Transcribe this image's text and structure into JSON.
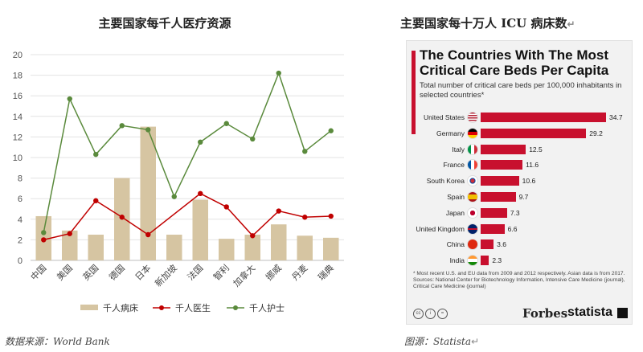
{
  "left_chart": {
    "title": "主要国家每千人医疗资源",
    "source": "数据来源：World Bank"
  },
  "right_chart": {
    "title": "主要国家每十万人 ICU 病床数",
    "source": "图源：Statista",
    "panel_title": "The Countries With The Most Critical Care Beds Per Capita",
    "panel_subtitle": "Total number of critical care beds per 100,000 inhabitants in selected countries*",
    "notes": "* Most recent U.S. and EU data from 2009 and 2012 respectively. Asian data is from 2017.",
    "sources": "Sources: National Center for Biotechnology Information, Intensive Care Medicine (journal), Critical Care Medicine (journal)",
    "brand_forbes": "Forbes",
    "brand_statista": "statista",
    "bar_color": "#c8102e"
  },
  "chart_data": [
    {
      "type": "bar",
      "title": "主要国家每千人医疗资源",
      "categories": [
        "中国",
        "美国",
        "英国",
        "德国",
        "日本",
        "新加坡",
        "法国",
        "智利",
        "加拿大",
        "挪威",
        "丹麦",
        "瑞典"
      ],
      "ylim": [
        0,
        20
      ],
      "yticks": [
        0,
        2,
        4,
        6,
        8,
        10,
        12,
        14,
        16,
        18,
        20
      ],
      "grid": true,
      "legend": "bottom",
      "series": [
        {
          "name": "千人病床",
          "kind": "bar",
          "color": "#d6c5a2",
          "values": [
            4.3,
            2.9,
            2.5,
            8.0,
            13.0,
            2.5,
            5.9,
            2.1,
            2.5,
            3.5,
            2.4,
            2.2
          ]
        },
        {
          "name": "千人医生",
          "kind": "line",
          "color": "#c00000",
          "values": [
            2.0,
            2.6,
            5.8,
            4.2,
            2.5,
            null,
            6.5,
            5.2,
            2.4,
            4.8,
            4.2,
            4.3
          ]
        },
        {
          "name": "千人护士",
          "kind": "line",
          "color": "#5a8a3c",
          "values": [
            2.7,
            15.7,
            10.3,
            13.1,
            12.7,
            6.2,
            11.5,
            13.3,
            11.8,
            18.2,
            10.6,
            12.6
          ]
        }
      ]
    },
    {
      "type": "bar",
      "orientation": "horizontal",
      "title": "The Countries With The Most Critical Care Beds Per Capita",
      "categories": [
        "United States",
        "Germany",
        "Italy",
        "France",
        "South Korea",
        "Spain",
        "Japan",
        "United Kingdom",
        "China",
        "India"
      ],
      "values": [
        34.7,
        29.2,
        12.5,
        11.6,
        10.6,
        9.7,
        7.3,
        6.6,
        3.6,
        2.3
      ],
      "flags": [
        "us",
        "de",
        "it",
        "fr",
        "kr",
        "es",
        "jp",
        "gb",
        "cn",
        "in"
      ]
    }
  ]
}
